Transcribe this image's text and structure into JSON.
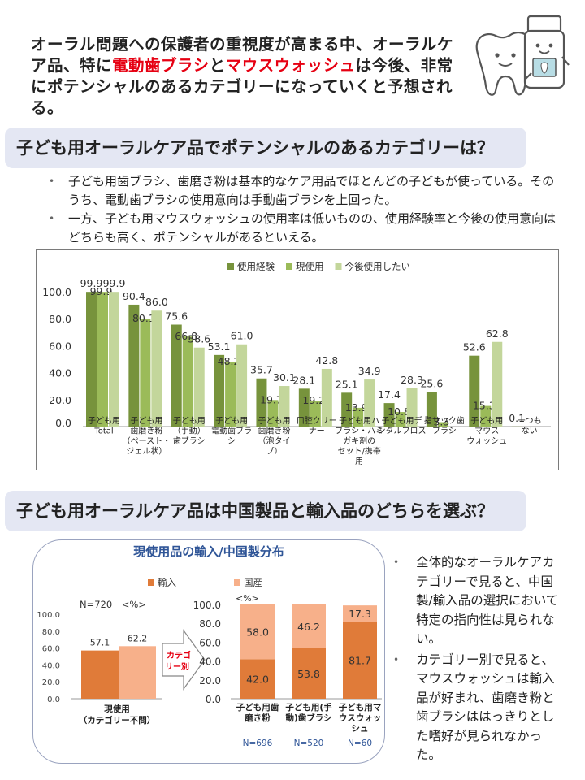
{
  "headline": {
    "part1": "オーラル問題への保護者の重視度が高まる中、オーラルケア品、特に",
    "hl1": "電動歯ブラシ",
    "part2": "と",
    "hl2": "マウスウォッシュ",
    "part3": "は今後、非常にポテンシャルのあるカテゴリーになっていくと予想される。"
  },
  "section1": {
    "title": "子ども用オーラルケア品でポテンシャルのあるカテゴリーは？",
    "bullets": [
      "子ども用歯ブラシ、歯磨き粉は基本的なケア用品でほとんどの子どもが使っている。そのうち、電動歯ブラシの使用意向は手動歯ブラシを上回った。",
      "一方、子ども用マウスウォッシュの使用率は低いものの、使用経験率と今後の使用意向はどちらも高く、ポテンシャルがあるといえる。"
    ]
  },
  "section2": {
    "title": "子ども用オーラルケア品は中国製品と輸入品のどちらを選ぶ？",
    "panel_title": "現使用品の輸入/中国製分布",
    "sample_note": "N=720　<%>",
    "arrow_label": "カテゴリー別",
    "unit_label": "<%>",
    "bullets": [
      "全体的なオーラルケアカテゴリーで見ると、中国製/輸入品の選択において特定の指向性は見られない。",
      "カテゴリー別で見ると、マウスウォッシュは輸入品が好まれ、歯磨き粉と歯ブラシははっきりとした嗜好が見られなかった。"
    ]
  },
  "colors": {
    "used": "#77933c",
    "current": "#9bbb59",
    "want": "#c3d69b",
    "import": "#e07b39",
    "domestic": "#f7b08a",
    "banner": "#e4e7f3",
    "red": "#e60012",
    "blue": "#2f5597"
  },
  "icons": [
    "tooth-mascot-icon",
    "mouthwash-bottle-icon"
  ],
  "chart_data": [
    {
      "type": "bar",
      "categories": [
        "子ども用Total",
        "子ども用歯磨き粉（ペースト・ジェル状）",
        "子ども用（手動）歯ブラシ",
        "子ども用電動歯ブラシ",
        "子ども用歯磨き粉（泡タイプ）",
        "口腔クリーナー",
        "子ども用ハブラシ・ハミガキ剤のセット/携帯用",
        "子ども用デンタルフロス",
        "指サック歯ブラシ",
        "子ども用マウスウォッシュ",
        "一つもない"
      ],
      "category_lines": [
        [
          "子ども用",
          "Total"
        ],
        [
          "子ども用",
          "歯磨き粉",
          "（ペースト・",
          "ジェル状）"
        ],
        [
          "子ども用",
          "（手動）",
          "歯ブラシ"
        ],
        [
          "子ども用",
          "電動歯ブラ",
          "シ"
        ],
        [
          "子ども用",
          "歯磨き粉",
          "（泡タイ",
          "プ）"
        ],
        [
          "口腔クリー",
          "ナー"
        ],
        [
          "子ども用ハ",
          "ブラシ・ハミ",
          "ガキ剤の",
          "セット/携帯",
          "用"
        ],
        [
          "子ども用デ",
          "ンタルフロス"
        ],
        [
          "指サック歯",
          "ブラシ"
        ],
        [
          "子ども用",
          "マウス",
          "ウォッシュ"
        ],
        [
          "一つも",
          "ない"
        ]
      ],
      "series": [
        {
          "name": "使用経験",
          "values": [
            99.9,
            90.4,
            75.6,
            53.1,
            35.7,
            28.1,
            25.1,
            17.4,
            25.6,
            52.6,
            0.1
          ]
        },
        {
          "name": "現使用",
          "values": [
            99.9,
            80.1,
            66.8,
            48.2,
            19.7,
            19.2,
            13.9,
            10.8,
            3.3,
            15.3,
            0.0
          ]
        },
        {
          "name": "今後使用したい",
          "values": [
            99.9,
            86.0,
            58.6,
            61.0,
            30.1,
            42.8,
            34.9,
            28.3,
            0.0,
            62.8,
            0.0
          ]
        }
      ],
      "yticks": [
        "0.0",
        "20.0",
        "40.0",
        "60.0",
        "80.0",
        "100.0"
      ],
      "ylim": [
        0,
        100
      ],
      "legend": "top"
    },
    {
      "type": "bar",
      "categories": [
        "現使用（カテゴリー不問）"
      ],
      "category_lines": [
        [
          "現使用",
          "（カテゴリー不問）"
        ]
      ],
      "series": [
        {
          "name": "輸入",
          "values": [
            57.1
          ]
        },
        {
          "name": "国産",
          "values": [
            62.2
          ]
        }
      ],
      "yticks": [
        "0.0",
        "20.0",
        "40.0",
        "60.0",
        "80.0",
        "100.0"
      ],
      "ylim": [
        0,
        100
      ]
    },
    {
      "type": "bar",
      "stacked": true,
      "categories": [
        "子ども用歯磨き粉",
        "子ども用(手動)歯ブラシ",
        "子ども用マウスウォッシュ"
      ],
      "category_lines": [
        [
          "子ども用歯",
          "磨き粉"
        ],
        [
          "子ども用(手",
          "動)歯ブラシ"
        ],
        [
          "子ども用マ",
          "ウスウォッ",
          "シュ"
        ]
      ],
      "n_labels": [
        "N=696",
        "N=520",
        "N=60"
      ],
      "series": [
        {
          "name": "輸入",
          "values": [
            42.0,
            53.8,
            81.7
          ]
        },
        {
          "name": "国産",
          "values": [
            58.0,
            46.2,
            17.3
          ]
        }
      ],
      "yticks": [
        "0.0",
        "20.0",
        "40.0",
        "60.0",
        "80.0",
        "100.0"
      ],
      "ylim": [
        0,
        100
      ],
      "legend": "top"
    }
  ]
}
